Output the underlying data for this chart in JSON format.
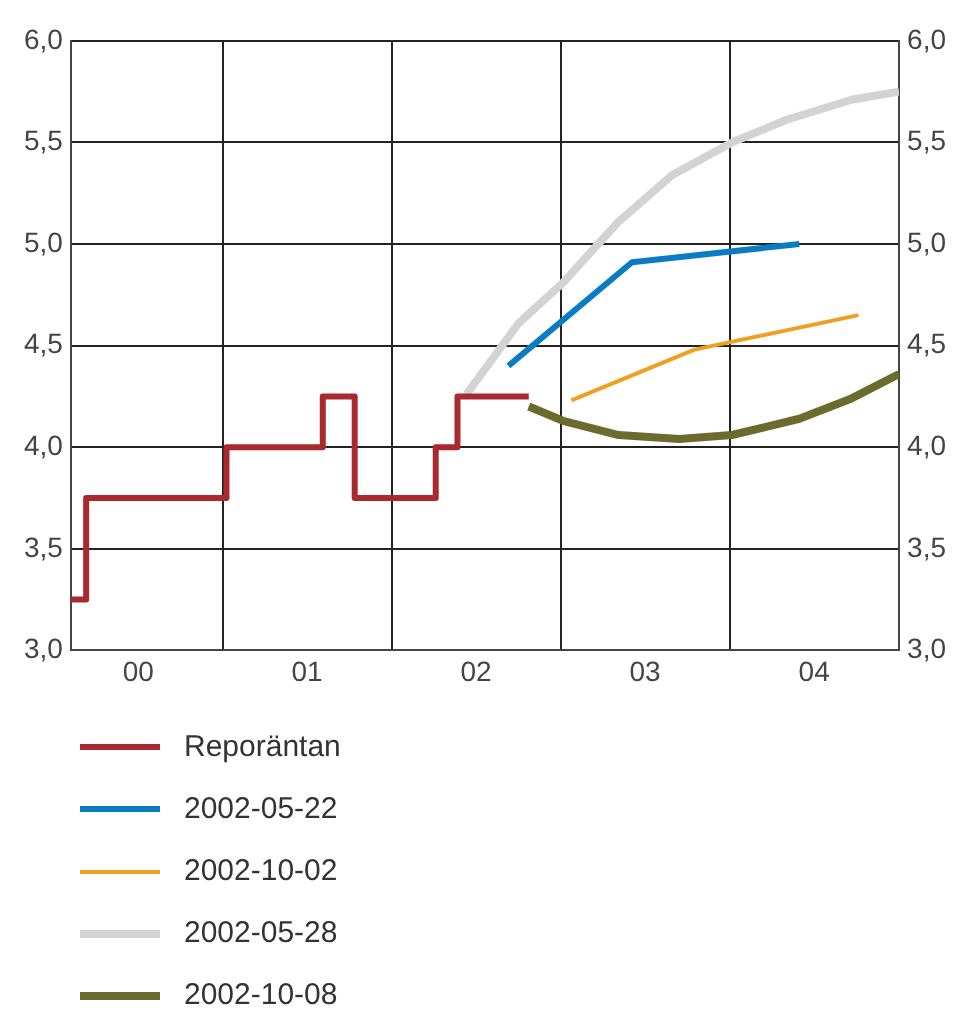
{
  "chart_data": {
    "type": "line",
    "xlim": [
      "2000-02-06",
      "2005-01-01"
    ],
    "xticks": [
      {
        "value": "2000-07-01",
        "label": "00"
      },
      {
        "value": "2001-01-01",
        "label": null
      },
      {
        "value": "2001-07-01",
        "label": "01"
      },
      {
        "value": "2002-01-01",
        "label": null
      },
      {
        "value": "2002-07-01",
        "label": "02"
      },
      {
        "value": "2003-01-01",
        "label": null
      },
      {
        "value": "2003-07-01",
        "label": "03"
      },
      {
        "value": "2004-01-01",
        "label": null
      },
      {
        "value": "2004-07-01",
        "label": "04"
      }
    ],
    "ylim": [
      3.0,
      6.0
    ],
    "yticks": [
      {
        "value": 3,
        "label": "3,0"
      },
      {
        "value": 3.5,
        "label": "3,5"
      },
      {
        "value": 4,
        "label": "4,0"
      },
      {
        "value": 4.5,
        "label": "4,5"
      },
      {
        "value": 5,
        "label": "5,0"
      },
      {
        "value": 5.5,
        "label": "5,5"
      },
      {
        "value": 6,
        "label": "6,0"
      }
    ],
    "y2lim": [
      3.0,
      6.0
    ],
    "y2ticks": [
      {
        "value": 3,
        "label": "3,0"
      },
      {
        "value": 3.5,
        "label": "3,5"
      },
      {
        "value": 4,
        "label": "4,0"
      },
      {
        "value": 4.5,
        "label": "4,5"
      },
      {
        "value": 5,
        "label": "5,0"
      },
      {
        "value": 5.5,
        "label": "5,5"
      },
      {
        "value": 6,
        "label": "6,0"
      }
    ],
    "grid": true,
    "legend": "bottom",
    "marker": "none",
    "series": [
      {
        "name": "Reporäntan",
        "type": "step",
        "color": "#a82a2e",
        "x": [
          "2000-02-06",
          "2000-03-10",
          "2001-01-08",
          "2001-08-04",
          "2001-10-12",
          "2002-04-05",
          "2002-05-22",
          "2002-10-23"
        ],
        "values": [
          3.25,
          3.75,
          4.0,
          4.25,
          3.75,
          4.0,
          4.25,
          4.25
        ]
      },
      {
        "name": "2002-05-22",
        "color": "#0a7cc4",
        "x": [
          "2002-09-09",
          "2003-06-03",
          "2004-05-30"
        ],
        "values": [
          4.4,
          4.91,
          5.0
        ]
      },
      {
        "name": "2002-10-02",
        "color": "#f0a020",
        "x": [
          "2003-01-23",
          "2003-10-16",
          "2004-10-05"
        ],
        "values": [
          4.23,
          4.48,
          4.65
        ]
      },
      {
        "name": "2002-05-28",
        "color": "#d3d3d3",
        "x": [
          "2002-06-10",
          "2002-10-01",
          "2003-01-05",
          "2003-05-05",
          "2003-08-29",
          "2004-01-05",
          "2004-05-01",
          "2004-09-20",
          "2005-01-01"
        ],
        "values": [
          4.26,
          4.61,
          4.81,
          5.11,
          5.34,
          5.5,
          5.61,
          5.71,
          5.75
        ]
      },
      {
        "name": "2002-10-08",
        "color": "#6b6b2e",
        "x": [
          "2002-10-23",
          "2003-01-05",
          "2003-05-05",
          "2003-09-13",
          "2004-01-05",
          "2004-05-30",
          "2004-09-20",
          "2005-01-01"
        ],
        "values": [
          4.2,
          4.13,
          4.06,
          4.04,
          4.06,
          4.14,
          4.24,
          4.36
        ]
      }
    ]
  }
}
